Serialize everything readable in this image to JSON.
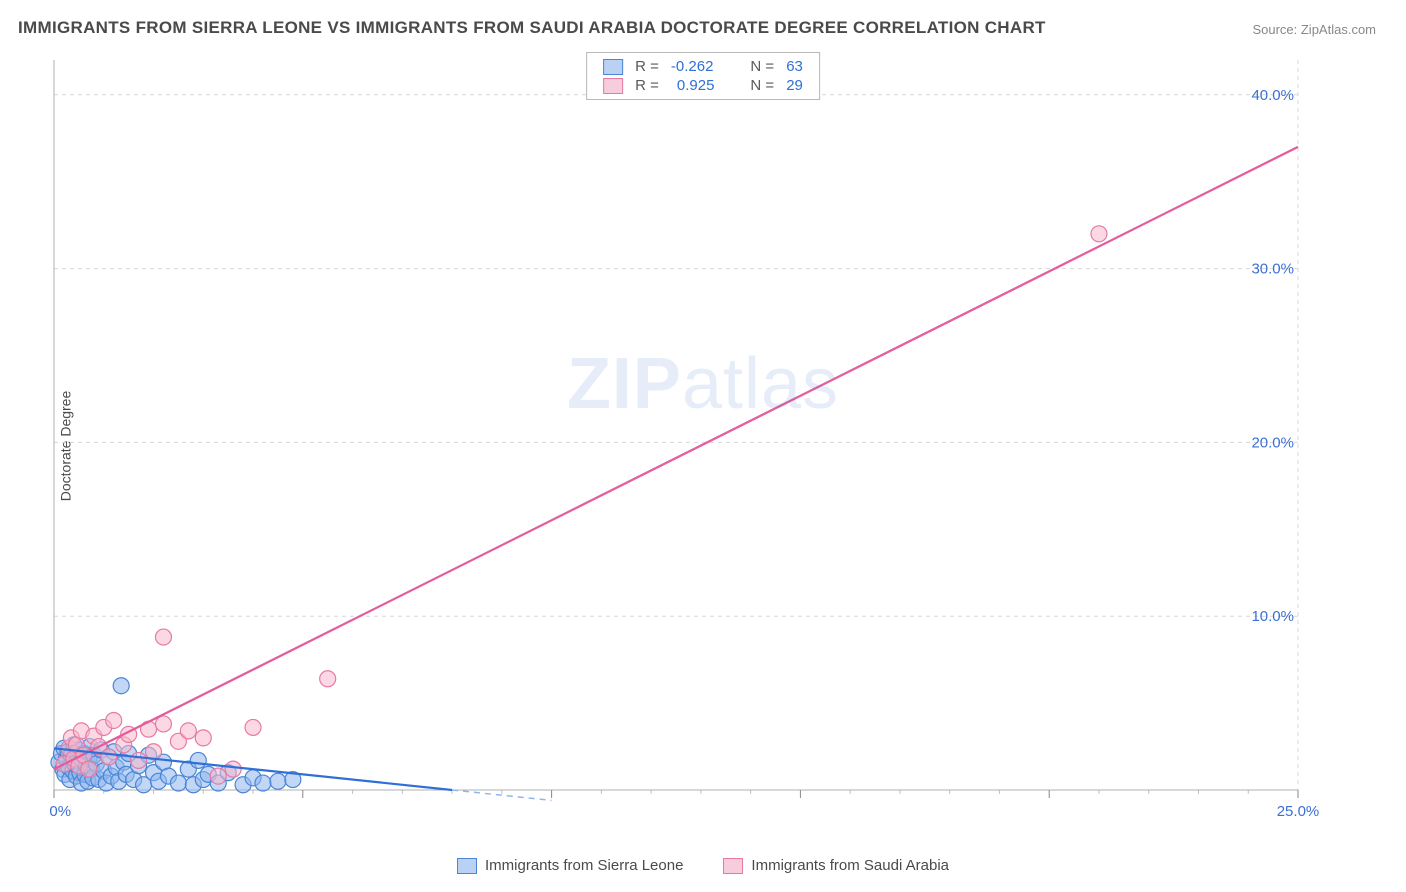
{
  "title": "IMMIGRANTS FROM SIERRA LEONE VS IMMIGRANTS FROM SAUDI ARABIA DOCTORATE DEGREE CORRELATION CHART",
  "source": "Source: ZipAtlas.com",
  "ylabel": "Doctorate Degree",
  "watermark_a": "ZIP",
  "watermark_b": "atlas",
  "chart": {
    "type": "scatter",
    "xlim": [
      0,
      25
    ],
    "ylim": [
      0,
      42
    ],
    "x_ticks_major": [
      0,
      5,
      10,
      15,
      20,
      25
    ],
    "x_tick_labels": {
      "0": "0.0%",
      "25": "25.0%"
    },
    "y_grid": [
      10,
      20,
      30,
      40
    ],
    "y_tick_labels": {
      "10": "10.0%",
      "20": "20.0%",
      "30": "30.0%",
      "40": "40.0%"
    },
    "background_color": "#ffffff",
    "grid_color": "#d8d8d8",
    "axis_color": "#b0b0b0",
    "marker_radius": 8,
    "series": [
      {
        "name": "Immigrants from Sierra Leone",
        "color_fill": "#8fb7ec",
        "color_stroke": "#4a85d6",
        "trend_color": "#2f6fd6",
        "R": "-0.262",
        "N": "63",
        "trend": {
          "x1": 0,
          "y1": 2.4,
          "x2": 8.0,
          "y2": 0.0
        },
        "trend_extrapolate": {
          "x1": 8.0,
          "y1": 0.0,
          "x2": 10.0,
          "y2": -0.6
        },
        "points": [
          [
            0.1,
            1.6
          ],
          [
            0.15,
            2.1
          ],
          [
            0.18,
            1.2
          ],
          [
            0.2,
            2.4
          ],
          [
            0.22,
            0.9
          ],
          [
            0.25,
            1.8
          ],
          [
            0.28,
            2.2
          ],
          [
            0.3,
            1.3
          ],
          [
            0.32,
            0.6
          ],
          [
            0.35,
            2.0
          ],
          [
            0.38,
            1.1
          ],
          [
            0.4,
            2.6
          ],
          [
            0.42,
            1.5
          ],
          [
            0.45,
            0.8
          ],
          [
            0.48,
            1.9
          ],
          [
            0.5,
            2.3
          ],
          [
            0.52,
            1.0
          ],
          [
            0.55,
            0.4
          ],
          [
            0.58,
            1.7
          ],
          [
            0.6,
            2.1
          ],
          [
            0.62,
            0.9
          ],
          [
            0.65,
            1.4
          ],
          [
            0.68,
            0.5
          ],
          [
            0.7,
            1.8
          ],
          [
            0.72,
            2.5
          ],
          [
            0.75,
            1.2
          ],
          [
            0.78,
            0.7
          ],
          [
            0.8,
            2.0
          ],
          [
            0.85,
            1.5
          ],
          [
            0.9,
            0.6
          ],
          [
            0.95,
            2.3
          ],
          [
            1.0,
            1.1
          ],
          [
            1.05,
            0.4
          ],
          [
            1.1,
            1.9
          ],
          [
            1.15,
            0.8
          ],
          [
            1.2,
            2.2
          ],
          [
            1.25,
            1.3
          ],
          [
            1.3,
            0.5
          ],
          [
            1.35,
            6.0
          ],
          [
            1.4,
            1.6
          ],
          [
            1.45,
            0.9
          ],
          [
            1.5,
            2.1
          ],
          [
            1.6,
            0.6
          ],
          [
            1.7,
            1.4
          ],
          [
            1.8,
            0.3
          ],
          [
            1.9,
            2.0
          ],
          [
            2.0,
            1.0
          ],
          [
            2.1,
            0.5
          ],
          [
            2.2,
            1.6
          ],
          [
            2.3,
            0.8
          ],
          [
            2.5,
            0.4
          ],
          [
            2.7,
            1.2
          ],
          [
            2.8,
            0.3
          ],
          [
            2.9,
            1.7
          ],
          [
            3.0,
            0.6
          ],
          [
            3.1,
            0.9
          ],
          [
            3.3,
            0.4
          ],
          [
            3.5,
            1.0
          ],
          [
            3.8,
            0.3
          ],
          [
            4.0,
            0.7
          ],
          [
            4.2,
            0.4
          ],
          [
            4.5,
            0.5
          ],
          [
            4.8,
            0.6
          ]
        ]
      },
      {
        "name": "Immigrants from Saudi Arabia",
        "color_fill": "#f7b8cc",
        "color_stroke": "#e57ba4",
        "trend_color": "#e75a9a",
        "R": "0.925",
        "N": "29",
        "trend": {
          "x1": 0,
          "y1": 1.2,
          "x2": 25.0,
          "y2": 37.0
        },
        "points": [
          [
            0.2,
            1.5
          ],
          [
            0.3,
            2.4
          ],
          [
            0.35,
            3.0
          ],
          [
            0.4,
            1.8
          ],
          [
            0.45,
            2.6
          ],
          [
            0.5,
            1.4
          ],
          [
            0.55,
            3.4
          ],
          [
            0.6,
            2.0
          ],
          [
            0.7,
            1.2
          ],
          [
            0.8,
            3.1
          ],
          [
            0.9,
            2.5
          ],
          [
            1.0,
            3.6
          ],
          [
            1.1,
            1.9
          ],
          [
            1.2,
            4.0
          ],
          [
            1.4,
            2.6
          ],
          [
            1.5,
            3.2
          ],
          [
            1.7,
            1.7
          ],
          [
            1.9,
            3.5
          ],
          [
            2.0,
            2.2
          ],
          [
            2.2,
            3.8
          ],
          [
            2.2,
            8.8
          ],
          [
            2.5,
            2.8
          ],
          [
            2.7,
            3.4
          ],
          [
            3.0,
            3.0
          ],
          [
            3.3,
            0.8
          ],
          [
            3.6,
            1.2
          ],
          [
            4.0,
            3.6
          ],
          [
            5.5,
            6.4
          ],
          [
            21.0,
            32.0
          ]
        ]
      }
    ]
  },
  "legend_top": {
    "r_label": "R =",
    "n_label": "N ="
  },
  "legend_bottom": {
    "series1": "Immigrants from Sierra Leone",
    "series2": "Immigrants from Saudi Arabia"
  }
}
